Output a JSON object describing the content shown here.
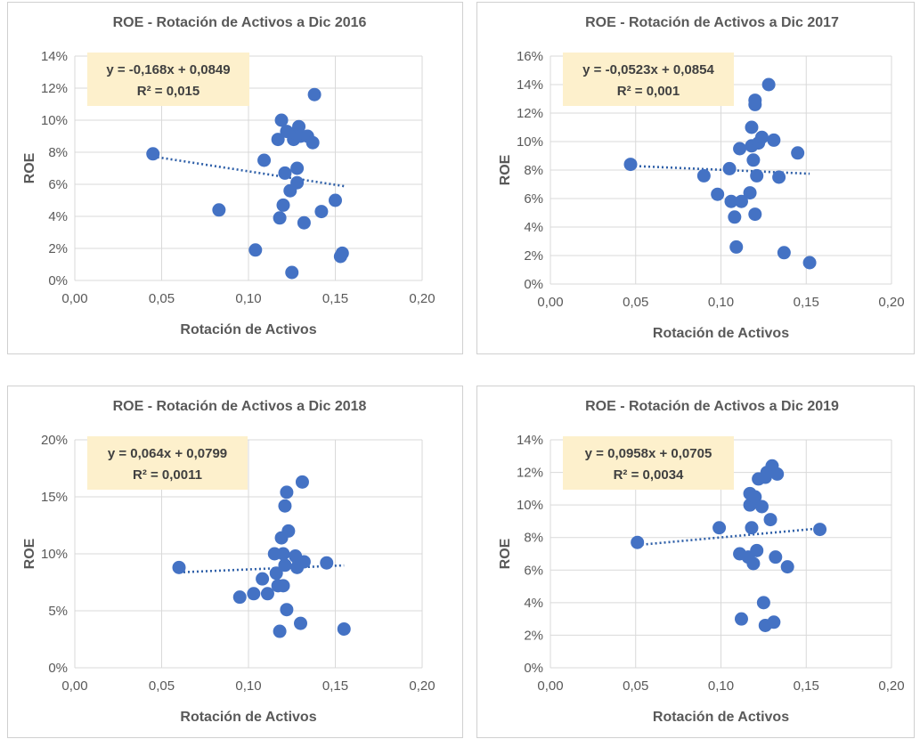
{
  "colors": {
    "marker": "#4472c4",
    "trendline": "#2e5fa8",
    "equation_box": "#fdf0cc",
    "grid": "#d9d9d9",
    "text": "#595959"
  },
  "chart_data": [
    {
      "type": "scatter",
      "title": "ROE - Rotación de Activos a Dic 2016",
      "xlabel": "Rotación de Activos",
      "ylabel": "ROE",
      "xlim": [
        0,
        0.2
      ],
      "ylim": [
        0,
        0.14
      ],
      "x_ticks": [
        "0,00",
        "0,05",
        "0,10",
        "0,15",
        "0,20"
      ],
      "y_ticks": [
        "0%",
        "2%",
        "4%",
        "6%",
        "8%",
        "10%",
        "12%",
        "14%"
      ],
      "equation": "y = -0,168x + 0,0849",
      "r_squared": "R² = 0,015",
      "trend": {
        "slope": -0.168,
        "intercept": 0.0849,
        "x_range": [
          0.045,
          0.155
        ]
      },
      "points": [
        [
          0.045,
          0.079
        ],
        [
          0.083,
          0.044
        ],
        [
          0.104,
          0.019
        ],
        [
          0.109,
          0.075
        ],
        [
          0.117,
          0.088
        ],
        [
          0.118,
          0.039
        ],
        [
          0.119,
          0.1
        ],
        [
          0.12,
          0.047
        ],
        [
          0.121,
          0.067
        ],
        [
          0.122,
          0.093
        ],
        [
          0.124,
          0.056
        ],
        [
          0.125,
          0.005
        ],
        [
          0.126,
          0.088
        ],
        [
          0.127,
          0.092
        ],
        [
          0.128,
          0.061
        ],
        [
          0.128,
          0.07
        ],
        [
          0.129,
          0.096
        ],
        [
          0.13,
          0.09
        ],
        [
          0.132,
          0.036
        ],
        [
          0.134,
          0.09
        ],
        [
          0.137,
          0.086
        ],
        [
          0.138,
          0.116
        ],
        [
          0.142,
          0.043
        ],
        [
          0.15,
          0.05
        ],
        [
          0.153,
          0.015
        ],
        [
          0.154,
          0.017
        ]
      ]
    },
    {
      "type": "scatter",
      "title": "ROE - Rotación de Activos a Dic 2017",
      "xlabel": "Rotación de Activos",
      "ylabel": "ROE",
      "xlim": [
        0,
        0.2
      ],
      "ylim": [
        0,
        0.16
      ],
      "x_ticks": [
        "0,00",
        "0,05",
        "0,10",
        "0,15",
        "0,20"
      ],
      "y_ticks": [
        "0%",
        "2%",
        "4%",
        "6%",
        "8%",
        "10%",
        "12%",
        "14%",
        "16%"
      ],
      "equation": "y = -0,0523x + 0,0854",
      "r_squared": "R² = 0,001",
      "trend": {
        "slope": -0.0523,
        "intercept": 0.0854,
        "x_range": [
          0.047,
          0.152
        ]
      },
      "points": [
        [
          0.047,
          0.084
        ],
        [
          0.09,
          0.076
        ],
        [
          0.098,
          0.063
        ],
        [
          0.105,
          0.081
        ],
        [
          0.106,
          0.058
        ],
        [
          0.108,
          0.047
        ],
        [
          0.109,
          0.026
        ],
        [
          0.111,
          0.095
        ],
        [
          0.112,
          0.058
        ],
        [
          0.117,
          0.064
        ],
        [
          0.118,
          0.11
        ],
        [
          0.118,
          0.097
        ],
        [
          0.119,
          0.087
        ],
        [
          0.12,
          0.049
        ],
        [
          0.12,
          0.129
        ],
        [
          0.12,
          0.126
        ],
        [
          0.121,
          0.076
        ],
        [
          0.122,
          0.099
        ],
        [
          0.124,
          0.103
        ],
        [
          0.128,
          0.14
        ],
        [
          0.131,
          0.101
        ],
        [
          0.134,
          0.075
        ],
        [
          0.137,
          0.022
        ],
        [
          0.145,
          0.092
        ],
        [
          0.152,
          0.015
        ]
      ]
    },
    {
      "type": "scatter",
      "title": "ROE - Rotación de Activos a Dic 2018",
      "xlabel": "Rotación de Activos",
      "ylabel": "ROE",
      "xlim": [
        0,
        0.2
      ],
      "ylim": [
        0,
        0.2
      ],
      "x_ticks": [
        "0,00",
        "0,05",
        "0,10",
        "0,15",
        "0,20"
      ],
      "y_ticks": [
        "0%",
        "5%",
        "10%",
        "15%",
        "20%"
      ],
      "equation": "y = 0,064x + 0,0799",
      "r_squared": "R² = 0,0011",
      "trend": {
        "slope": 0.064,
        "intercept": 0.0799,
        "x_range": [
          0.06,
          0.155
        ]
      },
      "points": [
        [
          0.06,
          0.088
        ],
        [
          0.095,
          0.062
        ],
        [
          0.103,
          0.065
        ],
        [
          0.108,
          0.078
        ],
        [
          0.111,
          0.065
        ],
        [
          0.115,
          0.1
        ],
        [
          0.116,
          0.083
        ],
        [
          0.117,
          0.072
        ],
        [
          0.118,
          0.032
        ],
        [
          0.119,
          0.114
        ],
        [
          0.12,
          0.1
        ],
        [
          0.12,
          0.072
        ],
        [
          0.121,
          0.09
        ],
        [
          0.121,
          0.142
        ],
        [
          0.122,
          0.154
        ],
        [
          0.122,
          0.051
        ],
        [
          0.123,
          0.12
        ],
        [
          0.127,
          0.098
        ],
        [
          0.128,
          0.088
        ],
        [
          0.129,
          0.093
        ],
        [
          0.13,
          0.039
        ],
        [
          0.131,
          0.163
        ],
        [
          0.132,
          0.093
        ],
        [
          0.145,
          0.092
        ],
        [
          0.155,
          0.034
        ]
      ]
    },
    {
      "type": "scatter",
      "title": "ROE - Rotación de Activos a Dic 2019",
      "xlabel": "Rotación de Activos",
      "ylabel": "ROE",
      "xlim": [
        0,
        0.2
      ],
      "ylim": [
        0,
        0.14
      ],
      "x_ticks": [
        "0,00",
        "0,05",
        "0,10",
        "0,15",
        "0,20"
      ],
      "y_ticks": [
        "0%",
        "2%",
        "4%",
        "6%",
        "8%",
        "10%",
        "12%",
        "14%"
      ],
      "equation": "y = 0,0958x + 0,0705",
      "r_squared": "R² = 0,0034",
      "trend": {
        "slope": 0.0958,
        "intercept": 0.0705,
        "x_range": [
          0.051,
          0.158
        ]
      },
      "points": [
        [
          0.051,
          0.077
        ],
        [
          0.099,
          0.086
        ],
        [
          0.111,
          0.07
        ],
        [
          0.112,
          0.03
        ],
        [
          0.116,
          0.068
        ],
        [
          0.117,
          0.107
        ],
        [
          0.117,
          0.1
        ],
        [
          0.118,
          0.086
        ],
        [
          0.119,
          0.064
        ],
        [
          0.12,
          0.105
        ],
        [
          0.121,
          0.072
        ],
        [
          0.122,
          0.116
        ],
        [
          0.124,
          0.099
        ],
        [
          0.125,
          0.04
        ],
        [
          0.126,
          0.026
        ],
        [
          0.126,
          0.117
        ],
        [
          0.127,
          0.12
        ],
        [
          0.129,
          0.091
        ],
        [
          0.13,
          0.124
        ],
        [
          0.131,
          0.028
        ],
        [
          0.132,
          0.068
        ],
        [
          0.133,
          0.119
        ],
        [
          0.139,
          0.062
        ],
        [
          0.158,
          0.085
        ]
      ]
    }
  ]
}
